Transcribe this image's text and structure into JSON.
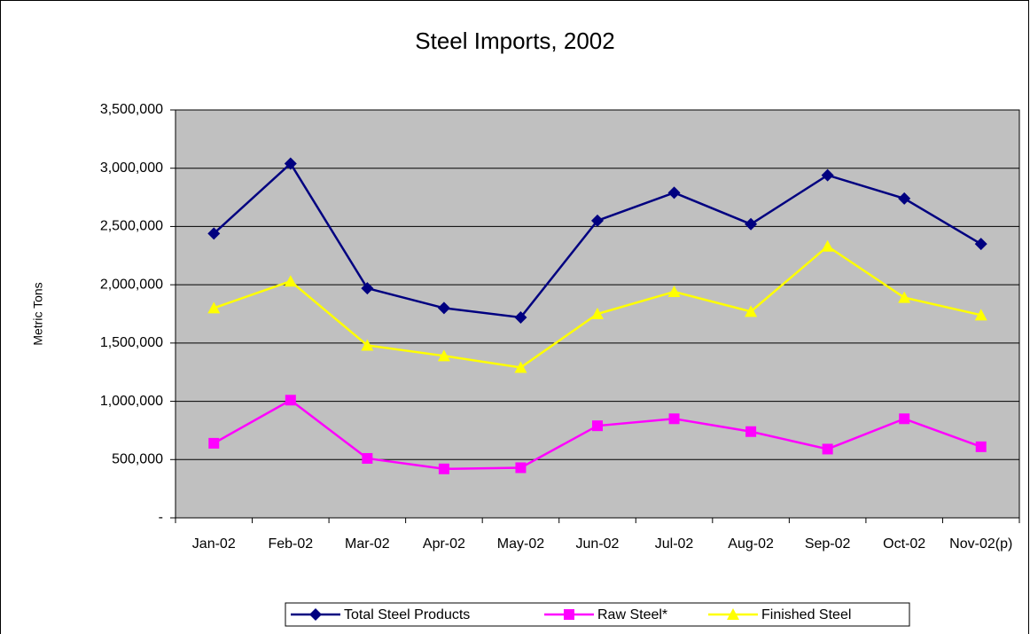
{
  "chart_data": {
    "type": "line",
    "title": "Steel Imports, 2002",
    "y_label": "Metric Tons",
    "categories": [
      "Jan-02",
      "Feb-02",
      "Mar-02",
      "Apr-02",
      "May-02",
      "Jun-02",
      "Jul-02",
      "Aug-02",
      "Sep-02",
      "Oct-02",
      "Nov-02(p)"
    ],
    "series": [
      {
        "name": "Total Steel Products",
        "color": "#000080",
        "marker": "diamond",
        "values": [
          2440000,
          3040000,
          1970000,
          1800000,
          1720000,
          2550000,
          2790000,
          2520000,
          2940000,
          2740000,
          2350000
        ]
      },
      {
        "name": "Raw Steel*",
        "color": "#ff00ff",
        "marker": "square",
        "values": [
          640000,
          1010000,
          510000,
          420000,
          430000,
          790000,
          850000,
          740000,
          590000,
          850000,
          610000
        ]
      },
      {
        "name": "Finished Steel",
        "color": "#ffff00",
        "marker": "triangle",
        "values": [
          1800000,
          2030000,
          1480000,
          1390000,
          1290000,
          1750000,
          1940000,
          1770000,
          2330000,
          1890000,
          1740000
        ]
      }
    ],
    "ylim": [
      0,
      3500000
    ],
    "yticks": [
      {
        "value": 0,
        "label": "-"
      },
      {
        "value": 500000,
        "label": "500,000"
      },
      {
        "value": 1000000,
        "label": "1,000,000"
      },
      {
        "value": 1500000,
        "label": "1,500,000"
      },
      {
        "value": 2000000,
        "label": "2,000,000"
      },
      {
        "value": 2500000,
        "label": "2,500,000"
      },
      {
        "value": 3000000,
        "label": "3,000,000"
      },
      {
        "value": 3500000,
        "label": "3,500,000"
      }
    ],
    "grid": true,
    "plot_background": "#c0c0c0",
    "legend": "bottom"
  }
}
